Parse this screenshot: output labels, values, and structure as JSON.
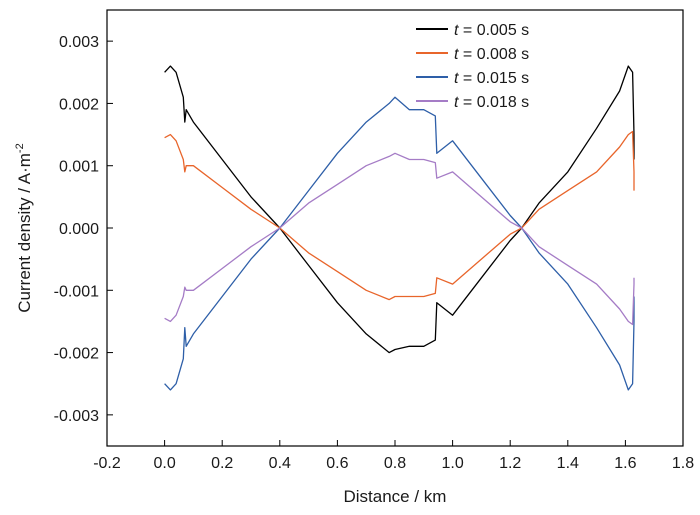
{
  "chart_data": {
    "type": "line",
    "xlabel": "Distance / km",
    "ylabel_main": "Current density / A·m",
    "ylabel_exp": "-2",
    "xlim": [
      -0.2,
      1.8
    ],
    "ylim": [
      -0.0035,
      0.0035
    ],
    "xticks": [
      -0.2,
      0.0,
      0.2,
      0.4,
      0.6,
      0.8,
      1.0,
      1.2,
      1.4,
      1.6,
      1.8
    ],
    "xtick_labels": [
      "-0.2",
      "0.0",
      "0.2",
      "0.4",
      "0.6",
      "0.8",
      "1.0",
      "1.2",
      "1.4",
      "1.6",
      "1.8"
    ],
    "yticks": [
      -0.003,
      -0.002,
      -0.001,
      0.0,
      0.001,
      0.002,
      0.003
    ],
    "ytick_labels": [
      "-0.003",
      "-0.002",
      "-0.001",
      "0.000",
      "0.001",
      "0.002",
      "0.003"
    ],
    "grid": false,
    "legend_position": "top-right",
    "series": [
      {
        "name": "t = 0.005 s",
        "legend_var": "t",
        "legend_rest": " = 0.005 s",
        "color": "#000000",
        "x": [
          0.0,
          0.02,
          0.04,
          0.065,
          0.07,
          0.075,
          0.1,
          0.2,
          0.3,
          0.4,
          0.5,
          0.6,
          0.7,
          0.78,
          0.8,
          0.85,
          0.9,
          0.94,
          0.945,
          1.0,
          1.1,
          1.2,
          1.24,
          1.3,
          1.4,
          1.5,
          1.58,
          1.61,
          1.625,
          1.63,
          1.63
        ],
        "y": [
          0.0025,
          0.0026,
          0.0025,
          0.0021,
          0.0017,
          0.0019,
          0.0017,
          0.0011,
          0.0005,
          0.0,
          -0.0006,
          -0.0012,
          -0.0017,
          -0.002,
          -0.00195,
          -0.0019,
          -0.0019,
          -0.0018,
          -0.0012,
          -0.0014,
          -0.0008,
          -0.0002,
          0.0,
          0.0004,
          0.0009,
          0.0016,
          0.0022,
          0.0026,
          0.0025,
          0.0015,
          0.0011
        ]
      },
      {
        "name": "t = 0.008 s",
        "legend_var": "t",
        "legend_rest": " = 0.008 s",
        "color": "#e8652b",
        "x": [
          0.0,
          0.02,
          0.04,
          0.065,
          0.07,
          0.075,
          0.1,
          0.2,
          0.3,
          0.4,
          0.5,
          0.6,
          0.7,
          0.78,
          0.8,
          0.85,
          0.9,
          0.94,
          0.945,
          1.0,
          1.1,
          1.2,
          1.24,
          1.3,
          1.4,
          1.5,
          1.58,
          1.61,
          1.625,
          1.63,
          1.63
        ],
        "y": [
          0.00145,
          0.0015,
          0.0014,
          0.0011,
          0.0009,
          0.001,
          0.001,
          0.00065,
          0.0003,
          0.0,
          -0.0004,
          -0.0007,
          -0.001,
          -0.00115,
          -0.0011,
          -0.0011,
          -0.0011,
          -0.00105,
          -0.0008,
          -0.0009,
          -0.0005,
          -0.0001,
          0.0,
          0.0003,
          0.0006,
          0.0009,
          0.0013,
          0.0015,
          0.00155,
          0.0009,
          0.0006
        ]
      },
      {
        "name": "t = 0.015 s",
        "legend_var": "t",
        "legend_rest": " = 0.015 s",
        "color": "#2e5fa8",
        "x": [
          0.0,
          0.02,
          0.04,
          0.065,
          0.07,
          0.075,
          0.1,
          0.2,
          0.3,
          0.4,
          0.5,
          0.6,
          0.7,
          0.78,
          0.8,
          0.85,
          0.9,
          0.94,
          0.945,
          1.0,
          1.1,
          1.2,
          1.24,
          1.3,
          1.4,
          1.5,
          1.58,
          1.61,
          1.625,
          1.63,
          1.63
        ],
        "y": [
          -0.0025,
          -0.0026,
          -0.0025,
          -0.0021,
          -0.0016,
          -0.0019,
          -0.0017,
          -0.0011,
          -0.0005,
          0.0,
          0.0006,
          0.0012,
          0.0017,
          0.002,
          0.0021,
          0.0019,
          0.0019,
          0.0018,
          0.0012,
          0.0014,
          0.0008,
          0.0002,
          0.0,
          -0.0004,
          -0.0009,
          -0.0016,
          -0.0022,
          -0.0026,
          -0.0025,
          -0.0015,
          -0.0011
        ]
      },
      {
        "name": "t = 0.018 s",
        "legend_var": "t",
        "legend_rest": " = 0.018 s",
        "color": "#a57cc6",
        "x": [
          0.0,
          0.02,
          0.04,
          0.065,
          0.07,
          0.075,
          0.1,
          0.2,
          0.3,
          0.4,
          0.5,
          0.6,
          0.7,
          0.78,
          0.8,
          0.85,
          0.9,
          0.94,
          0.945,
          1.0,
          1.1,
          1.2,
          1.24,
          1.3,
          1.4,
          1.5,
          1.58,
          1.61,
          1.625,
          1.63,
          1.63
        ],
        "y": [
          -0.00145,
          -0.0015,
          -0.0014,
          -0.0011,
          -0.00095,
          -0.001,
          -0.001,
          -0.00065,
          -0.0003,
          0.0,
          0.0004,
          0.0007,
          0.001,
          0.00115,
          0.0012,
          0.0011,
          0.0011,
          0.00105,
          0.0008,
          0.0009,
          0.0005,
          0.0001,
          0.0,
          -0.0003,
          -0.0006,
          -0.0009,
          -0.0013,
          -0.0015,
          -0.00155,
          -0.0009,
          -0.0008
        ]
      }
    ]
  }
}
